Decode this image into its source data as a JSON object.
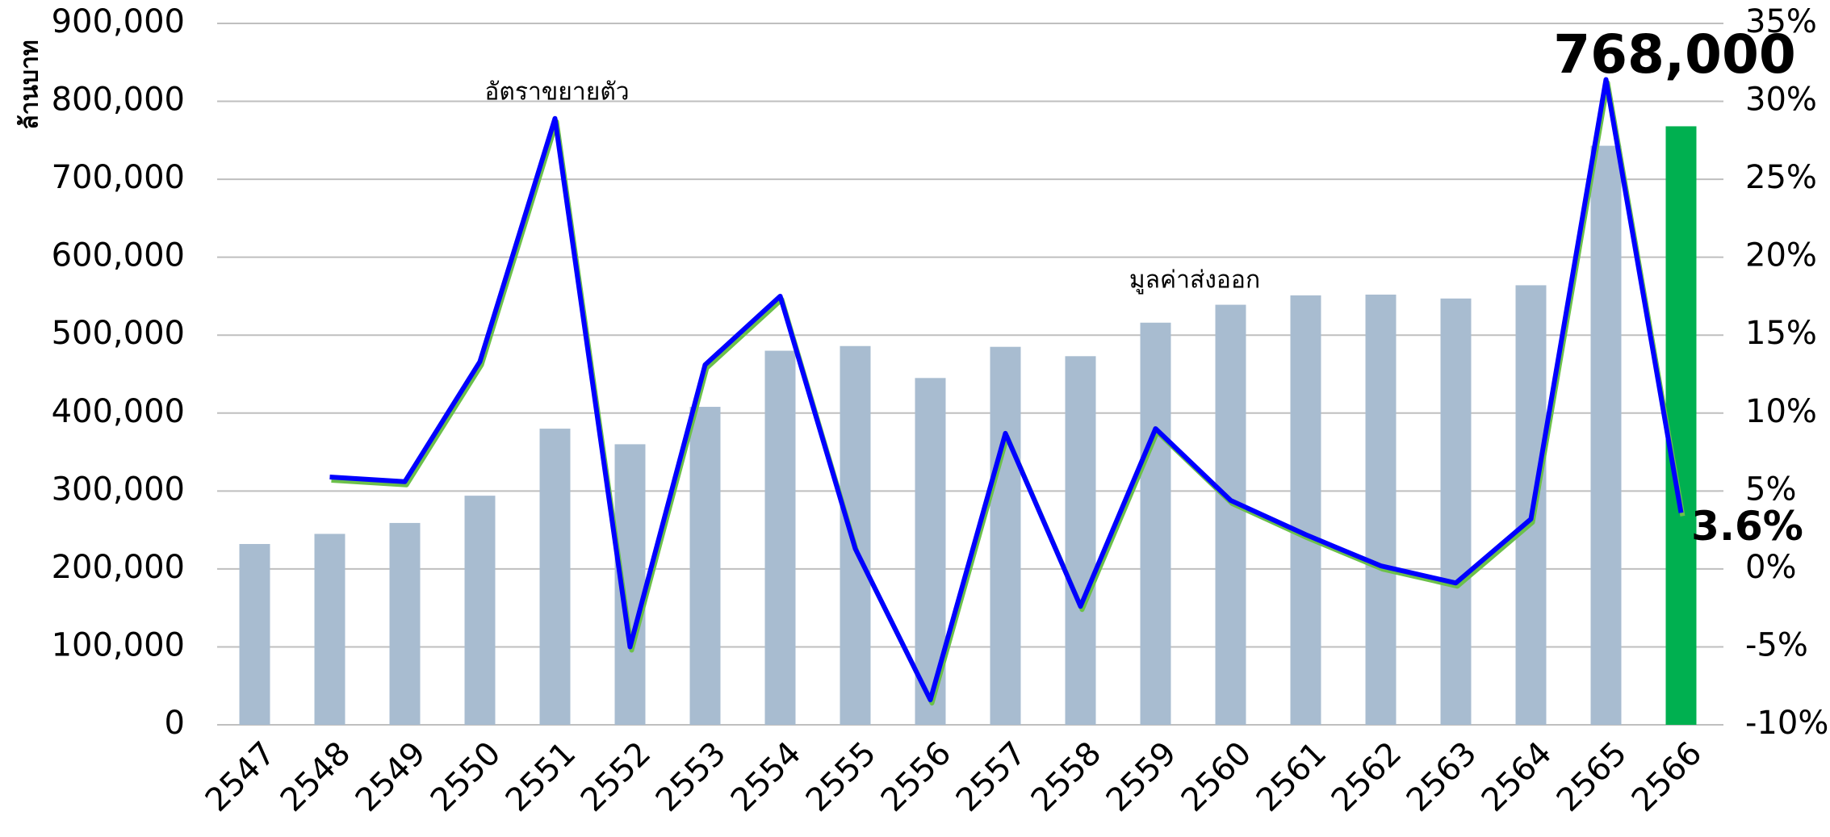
{
  "chart_data": {
    "type": "combo",
    "y_label": "ล้านบาท",
    "annotations": [
      "อัตราขยายตัว",
      "มูลค่าส่งออก"
    ],
    "categories": [
      "2547",
      "2548",
      "2549",
      "2550",
      "2551",
      "2552",
      "2553",
      "2554",
      "2555",
      "2556",
      "2557",
      "2558",
      "2559",
      "2560",
      "2561",
      "2562",
      "2563",
      "2564",
      "2565",
      "2566"
    ],
    "series": [
      {
        "name": "มูลค่าส่งออก",
        "type": "bar",
        "axis": "y",
        "colors": [
          "#a8bcd0",
          "#a8bcd0",
          "#a8bcd0",
          "#a8bcd0",
          "#a8bcd0",
          "#a8bcd0",
          "#a8bcd0",
          "#a8bcd0",
          "#a8bcd0",
          "#a8bcd0",
          "#a8bcd0",
          "#a8bcd0",
          "#a8bcd0",
          "#a8bcd0",
          "#a8bcd0",
          "#a8bcd0",
          "#a8bcd0",
          "#a8bcd0",
          "#a8bcd0",
          "#00b050"
        ],
        "values": [
          232000,
          245000,
          259000,
          294000,
          380000,
          360000,
          408000,
          480000,
          486000,
          445000,
          485000,
          473000,
          516000,
          539000,
          551000,
          552000,
          547000,
          564000,
          743000,
          768000
        ],
        "value_labels": [
          null,
          null,
          null,
          null,
          null,
          null,
          null,
          null,
          null,
          null,
          null,
          null,
          null,
          null,
          null,
          null,
          null,
          null,
          null,
          "768,000"
        ],
        "label_color": "#0000ff"
      },
      {
        "name": "อัตราขยายตัว",
        "type": "line",
        "axis": "y2",
        "color": "#0000ff",
        "shadow_color": "#6cc04a",
        "values": [
          null,
          5.9,
          5.6,
          13.3,
          28.9,
          -5.0,
          13.1,
          17.5,
          1.3,
          -8.4,
          8.7,
          -2.4,
          9.0,
          4.4,
          2.2,
          0.2,
          -0.9,
          3.2,
          31.4,
          3.6
        ],
        "value_labels": [
          null,
          null,
          null,
          null,
          null,
          null,
          null,
          null,
          null,
          null,
          null,
          null,
          null,
          null,
          null,
          null,
          null,
          null,
          null,
          "3.6%"
        ],
        "label_color": "#ff0000"
      }
    ],
    "ylim": [
      0,
      900000
    ],
    "yticks": [
      0,
      {
        "value": 100000,
        "label": "100,000"
      },
      {
        "value": 200000,
        "label": "200,000"
      },
      {
        "value": 300000,
        "label": "300,000"
      },
      {
        "value": 400000,
        "label": "400,000"
      },
      {
        "value": 500000,
        "label": "500,000"
      },
      {
        "value": 600000,
        "label": "600,000"
      },
      {
        "value": 700000,
        "label": "700,000"
      },
      {
        "value": 800000,
        "label": "800,000"
      },
      {
        "value": 900000,
        "label": "900,000"
      }
    ],
    "y2lim": [
      -10,
      35
    ],
    "y2ticks": [
      {
        "value": -10,
        "label": "-10%"
      },
      {
        "value": -5,
        "label": "-5%"
      },
      {
        "value": 0,
        "label": "0%"
      },
      {
        "value": 5,
        "label": "5%"
      },
      {
        "value": 10,
        "label": "10%"
      },
      {
        "value": 15,
        "label": "15%"
      },
      {
        "value": 20,
        "label": "20%"
      },
      {
        "value": 25,
        "label": "25%"
      },
      {
        "value": 30,
        "label": "30%"
      },
      {
        "value": 35,
        "label": "35%"
      }
    ],
    "grid": true
  }
}
